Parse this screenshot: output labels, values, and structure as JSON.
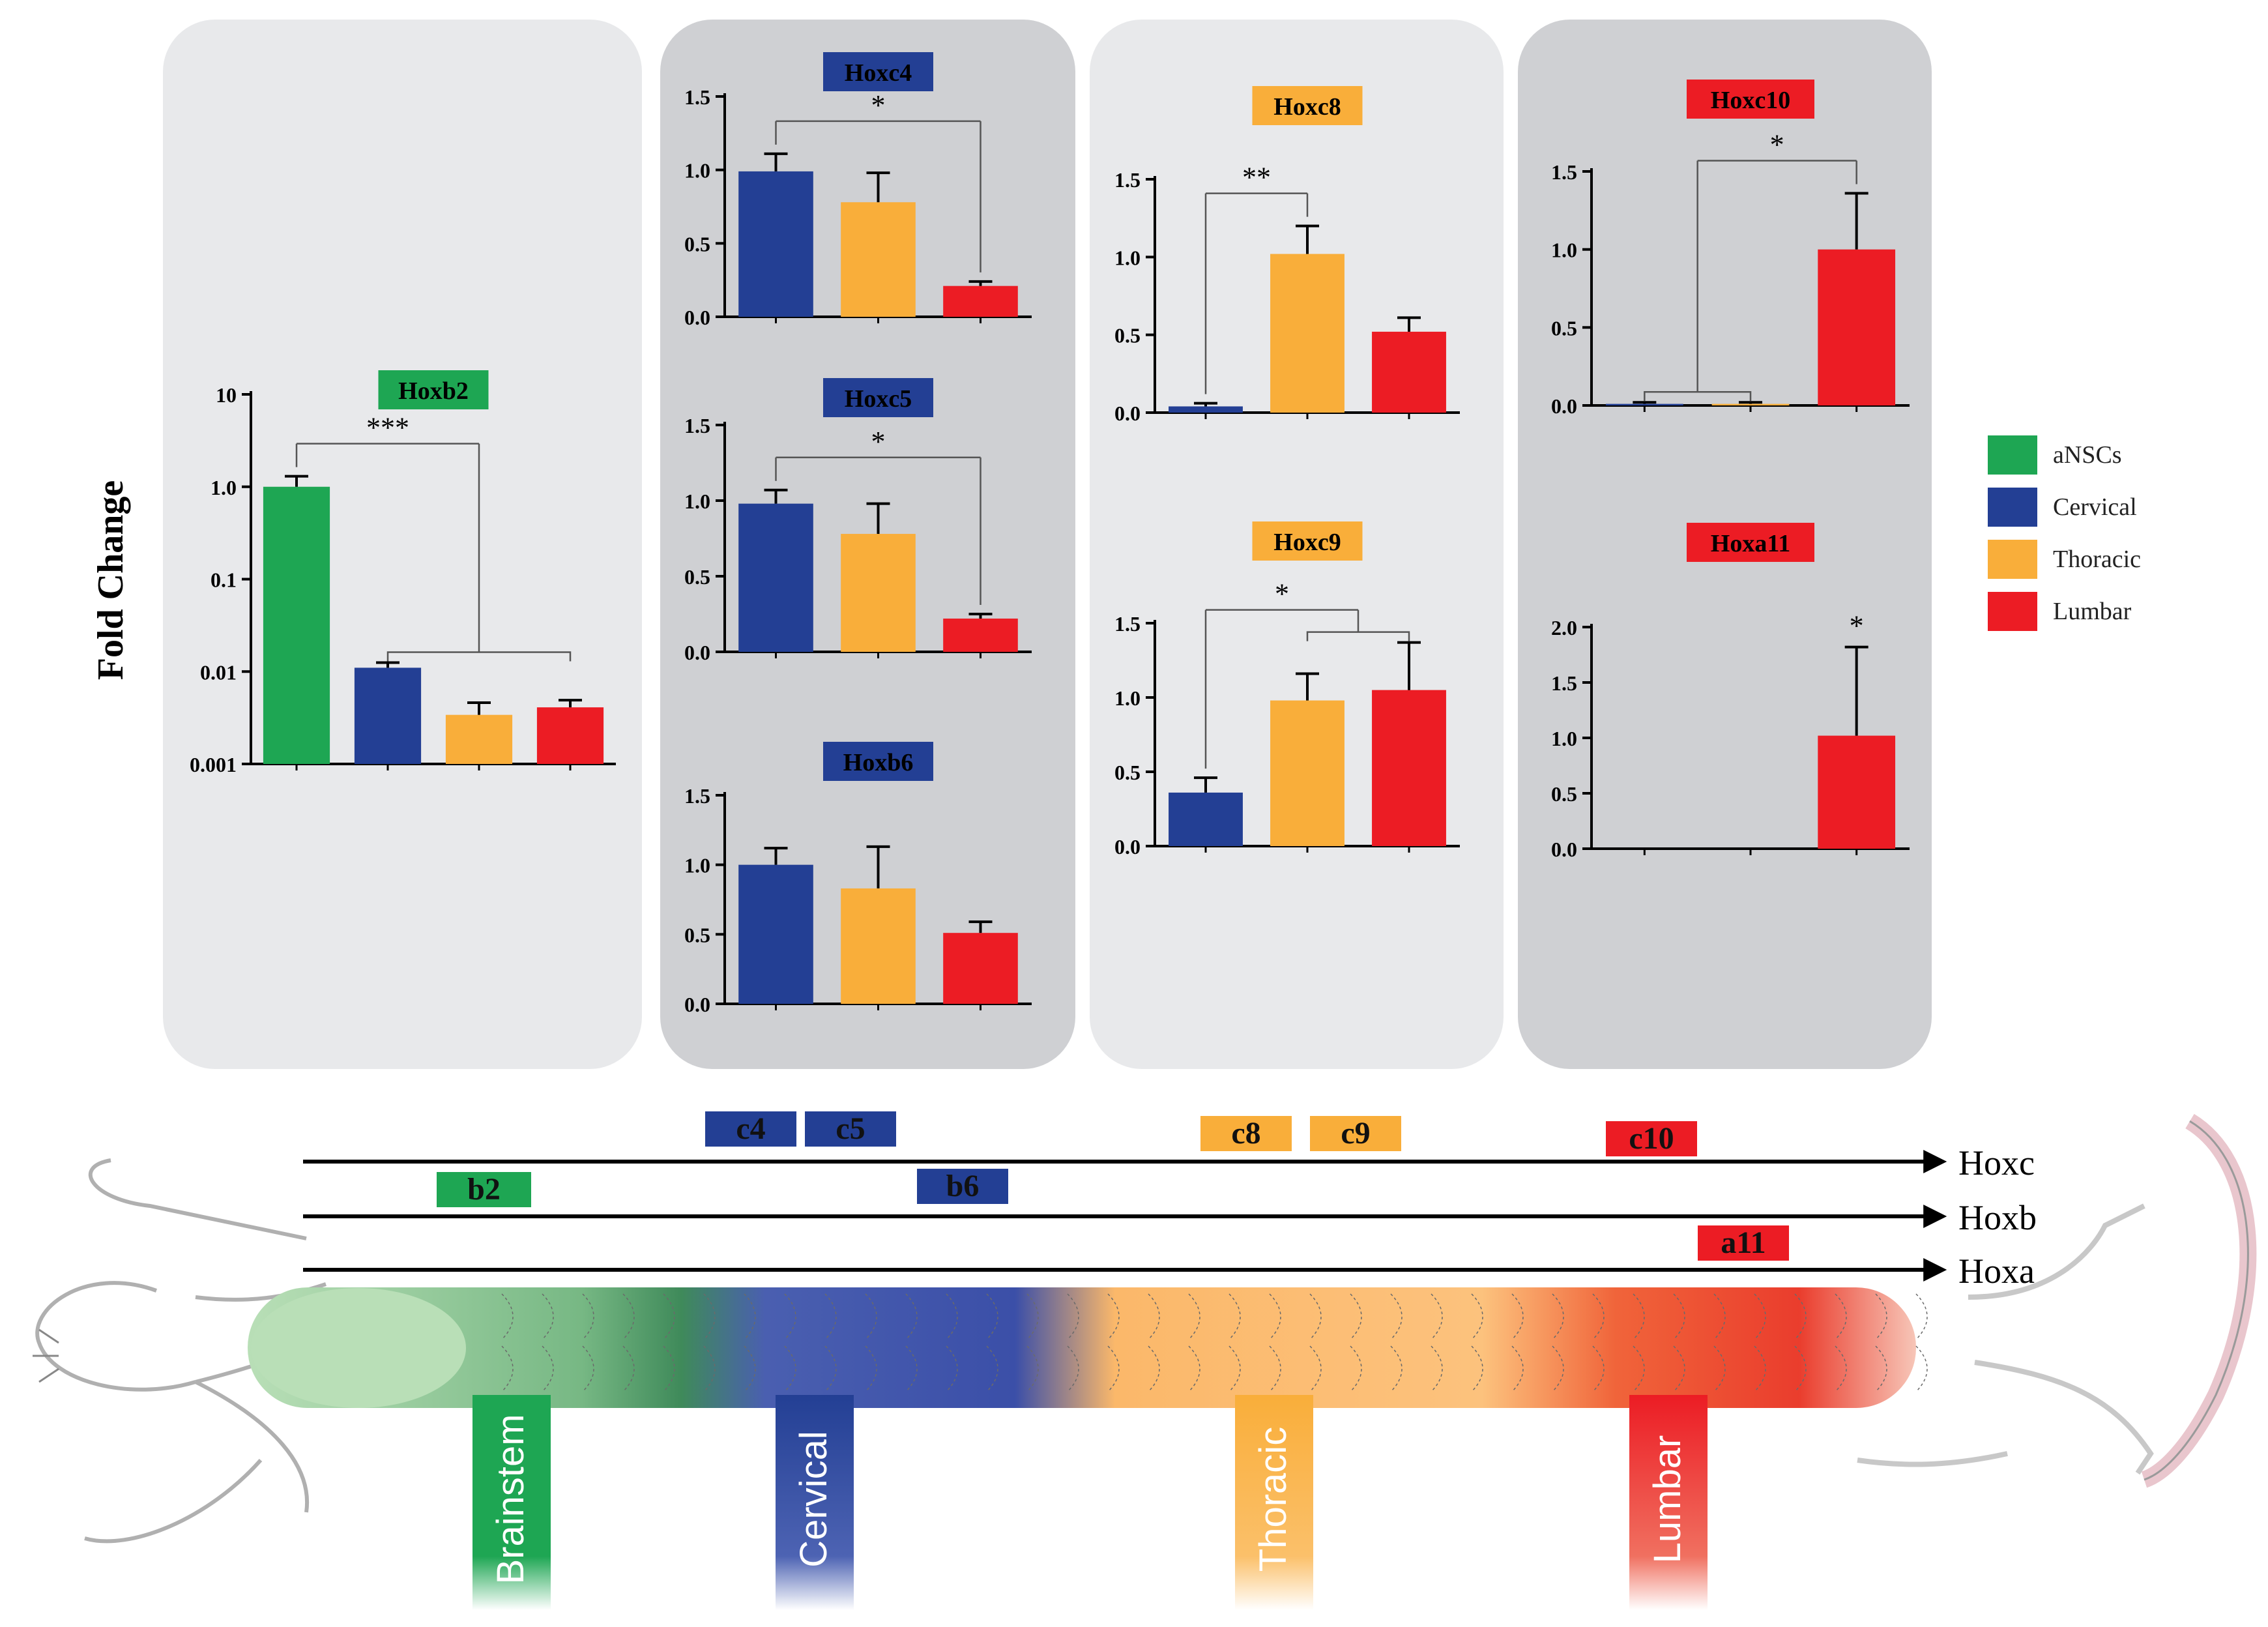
{
  "y_axis_title": "Fold Change",
  "legend": [
    {
      "label": "aNSCs",
      "color": "#1ea653"
    },
    {
      "label": "Cervical",
      "color": "#233f94"
    },
    {
      "label": "Thoracic",
      "color": "#f9ae3a"
    },
    {
      "label": "Lumbar",
      "color": "#ec1c24"
    }
  ],
  "colors": {
    "aNSCs": "#1ea653",
    "Cervical": "#233f94",
    "Thoracic": "#f9ae3a",
    "Lumbar": "#ec1c24",
    "panel_light": "#e8e9eb",
    "panel_dark": "#cfd0d3"
  },
  "chart_data": [
    {
      "type": "bar",
      "title": "Hoxb2",
      "title_color": "#1ea653",
      "scale": "log",
      "ylim": [
        0.001,
        10
      ],
      "yticks": [
        {
          "v": 10,
          "t": "10"
        },
        {
          "v": 1,
          "t": "1.0"
        },
        {
          "v": 0.1,
          "t": "0.1"
        },
        {
          "v": 0.01,
          "t": "0.01"
        },
        {
          "v": 0.001,
          "t": "0.001"
        }
      ],
      "categories": [
        "aNSCs",
        "Cervical",
        "Thoracic",
        "Lumbar"
      ],
      "values": [
        1.0,
        0.011,
        0.0034,
        0.0041
      ],
      "errors": [
        0.3,
        0.0015,
        0.0012,
        0.0008
      ],
      "significance": [
        {
          "from": [
            0
          ],
          "to": [
            1,
            2,
            3
          ],
          "label": "***"
        }
      ]
    },
    {
      "type": "bar",
      "title": "Hoxc4",
      "title_color": "#233f94",
      "ylim": [
        0,
        1.5
      ],
      "yticks": [
        {
          "v": 0,
          "t": "0.0"
        },
        {
          "v": 0.5,
          "t": "0.5"
        },
        {
          "v": 1.0,
          "t": "1.0"
        },
        {
          "v": 1.5,
          "t": "1.5"
        }
      ],
      "categories": [
        "Cervical",
        "Thoracic",
        "Lumbar"
      ],
      "values": [
        0.99,
        0.78,
        0.21
      ],
      "errors": [
        0.12,
        0.2,
        0.03
      ],
      "significance": [
        {
          "from": [
            0
          ],
          "to": [
            2
          ],
          "label": "*"
        }
      ]
    },
    {
      "type": "bar",
      "title": "Hoxc5",
      "title_color": "#233f94",
      "ylim": [
        0,
        1.5
      ],
      "yticks": [
        {
          "v": 0,
          "t": "0.0"
        },
        {
          "v": 0.5,
          "t": "0.5"
        },
        {
          "v": 1.0,
          "t": "1.0"
        },
        {
          "v": 1.5,
          "t": "1.5"
        }
      ],
      "categories": [
        "Cervical",
        "Thoracic",
        "Lumbar"
      ],
      "values": [
        0.98,
        0.78,
        0.22
      ],
      "errors": [
        0.09,
        0.2,
        0.03
      ],
      "significance": [
        {
          "from": [
            0
          ],
          "to": [
            2
          ],
          "label": "*"
        }
      ]
    },
    {
      "type": "bar",
      "title": "Hoxb6",
      "title_color": "#233f94",
      "ylim": [
        0,
        1.5
      ],
      "yticks": [
        {
          "v": 0,
          "t": "0.0"
        },
        {
          "v": 0.5,
          "t": "0.5"
        },
        {
          "v": 1.0,
          "t": "1.0"
        },
        {
          "v": 1.5,
          "t": "1.5"
        }
      ],
      "categories": [
        "Cervical",
        "Thoracic",
        "Lumbar"
      ],
      "values": [
        1.0,
        0.83,
        0.51
      ],
      "errors": [
        0.12,
        0.3,
        0.08
      ],
      "significance": []
    },
    {
      "type": "bar",
      "title": "Hoxc8",
      "title_color": "#f9ae3a",
      "ylim": [
        0,
        1.5
      ],
      "yticks": [
        {
          "v": 0,
          "t": "0.0"
        },
        {
          "v": 0.5,
          "t": "0.5"
        },
        {
          "v": 1.0,
          "t": "1.0"
        },
        {
          "v": 1.5,
          "t": "1.5"
        }
      ],
      "categories": [
        "Cervical",
        "Thoracic",
        "Lumbar"
      ],
      "values": [
        0.04,
        1.02,
        0.52
      ],
      "errors": [
        0.02,
        0.18,
        0.09
      ],
      "significance": [
        {
          "from": [
            0
          ],
          "to": [
            1
          ],
          "label": "**"
        }
      ]
    },
    {
      "type": "bar",
      "title": "Hoxc9",
      "title_color": "#f9ae3a",
      "ylim": [
        0,
        1.5
      ],
      "yticks": [
        {
          "v": 0,
          "t": "0.0"
        },
        {
          "v": 0.5,
          "t": "0.5"
        },
        {
          "v": 1.0,
          "t": "1.0"
        },
        {
          "v": 1.5,
          "t": "1.5"
        }
      ],
      "categories": [
        "Cervical",
        "Thoracic",
        "Lumbar"
      ],
      "values": [
        0.36,
        0.98,
        1.05
      ],
      "errors": [
        0.1,
        0.18,
        0.32
      ],
      "significance": [
        {
          "from": [
            0
          ],
          "to": [
            1,
            2
          ],
          "label": "*"
        }
      ]
    },
    {
      "type": "bar",
      "title": "Hoxc10",
      "title_color": "#ec1c24",
      "ylim": [
        0,
        1.5
      ],
      "yticks": [
        {
          "v": 0,
          "t": "0.0"
        },
        {
          "v": 0.5,
          "t": "0.5"
        },
        {
          "v": 1.0,
          "t": "1.0"
        },
        {
          "v": 1.5,
          "t": "1.5"
        }
      ],
      "categories": [
        "Cervical",
        "Thoracic",
        "Lumbar"
      ],
      "values": [
        0.01,
        0.01,
        1.0
      ],
      "errors": [
        0.01,
        0.01,
        0.36
      ],
      "significance": [
        {
          "from": [
            0,
            1
          ],
          "to": [
            2
          ],
          "label": "*"
        }
      ]
    },
    {
      "type": "bar",
      "title": "Hoxa11",
      "title_color": "#ec1c24",
      "ylim": [
        0,
        2.0
      ],
      "yticks": [
        {
          "v": 0,
          "t": "0.0"
        },
        {
          "v": 0.5,
          "t": "0.5"
        },
        {
          "v": 1.0,
          "t": "1.0"
        },
        {
          "v": 1.5,
          "t": "1.5"
        },
        {
          "v": 2.0,
          "t": "2.0"
        }
      ],
      "categories": [
        "Cervical",
        "Thoracic",
        "Lumbar"
      ],
      "values": [
        0,
        0,
        1.02
      ],
      "errors": [
        0,
        0,
        0.8
      ],
      "significance": [
        {
          "over": 2,
          "label": "*"
        }
      ]
    }
  ],
  "diagram": {
    "genes": [
      {
        "label": "c4",
        "row": "Hoxc",
        "color": "#233f94"
      },
      {
        "label": "c5",
        "row": "Hoxc",
        "color": "#233f94"
      },
      {
        "label": "c8",
        "row": "Hoxc",
        "color": "#f9ae3a"
      },
      {
        "label": "c9",
        "row": "Hoxc",
        "color": "#f9ae3a"
      },
      {
        "label": "c10",
        "row": "Hoxc",
        "color": "#ec1c24"
      },
      {
        "label": "b2",
        "row": "Hoxb",
        "color": "#1ea653"
      },
      {
        "label": "b6",
        "row": "Hoxb",
        "color": "#233f94"
      },
      {
        "label": "a11",
        "row": "Hoxa",
        "color": "#ec1c24"
      }
    ],
    "rows": [
      "Hoxc",
      "Hoxb",
      "Hoxa"
    ],
    "regions": [
      {
        "label": "Brainstem",
        "color": "#1ea653"
      },
      {
        "label": "Cervical",
        "color": "#233f94"
      },
      {
        "label": "Thoracic",
        "color": "#f9ae3a"
      },
      {
        "label": "Lumbar",
        "color": "#ec1c24"
      }
    ]
  }
}
